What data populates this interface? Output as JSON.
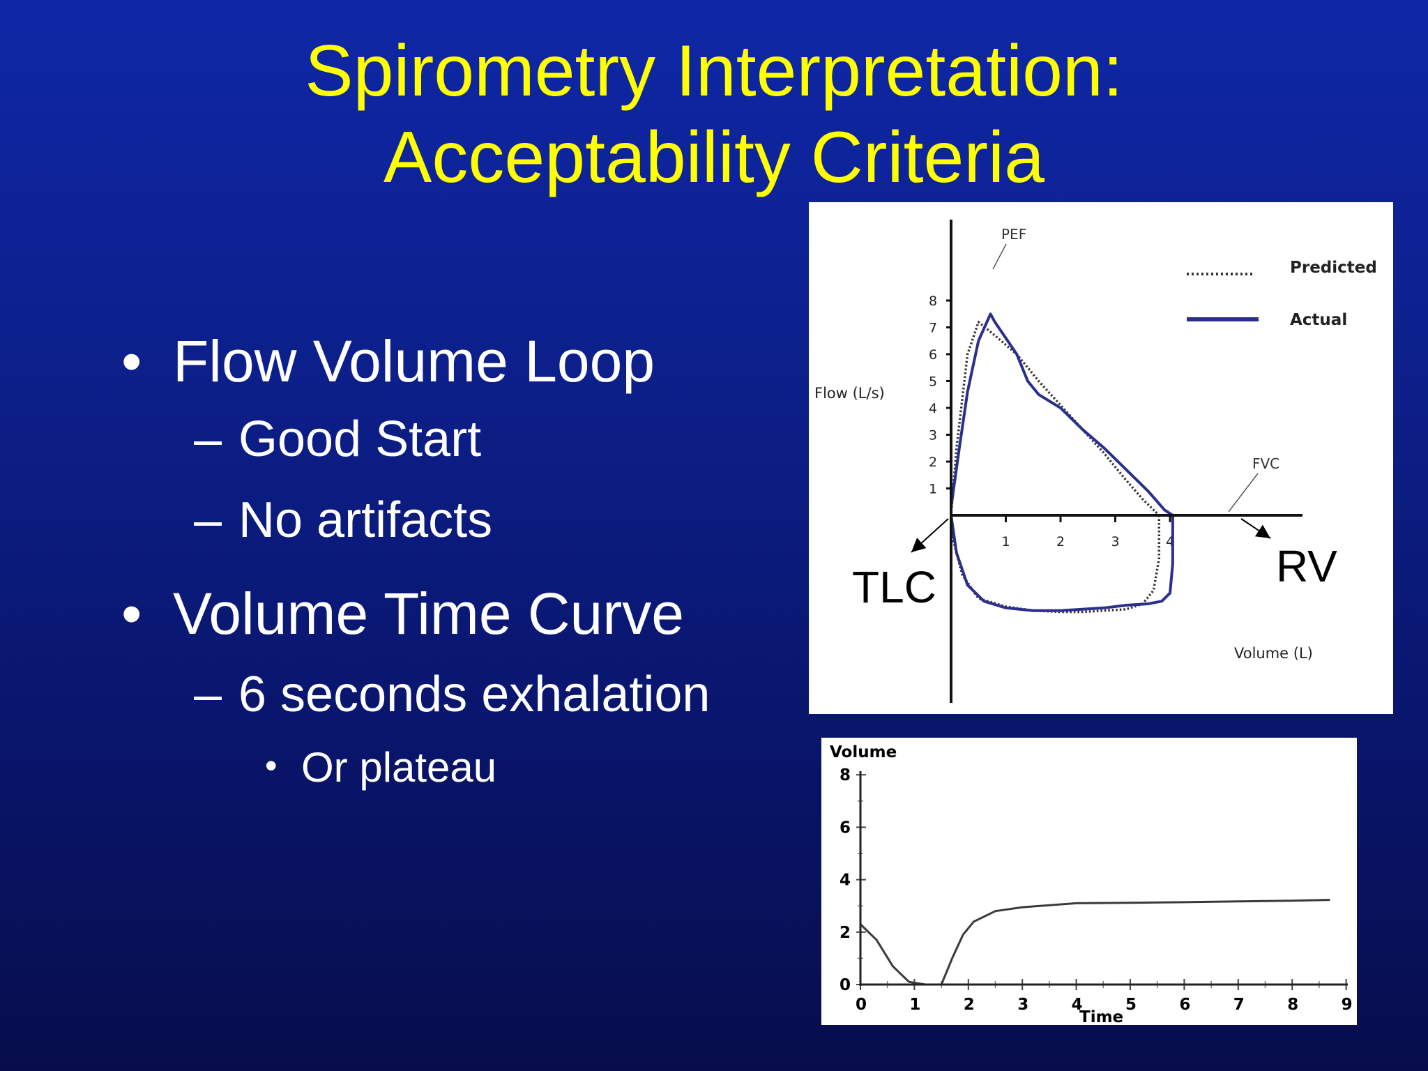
{
  "slide": {
    "title_line1": "Spirometry Interpretation:",
    "title_line2": "Acceptability Criteria",
    "bullets": [
      {
        "text": "Flow Volume Loop",
        "subs": [
          "Good Start",
          "No artifacts"
        ]
      },
      {
        "text": "Volume Time Curve",
        "subs": [
          "6 seconds exhalation"
        ],
        "subsubs": [
          "Or plateau"
        ]
      }
    ],
    "bullet_glyph": "•",
    "dash_glyph": "–"
  },
  "chart_data": [
    {
      "type": "line",
      "title": "",
      "xlabel": "Volume (L)",
      "ylabel": "Flow (L/s)",
      "xlim": [
        -0.05,
        4.9
      ],
      "ylim": [
        -5.3,
        8.5
      ],
      "x_ticks": [
        "1",
        "2",
        "3",
        "4"
      ],
      "y_ticks": [
        "1",
        "2",
        "3",
        "4",
        "5",
        "6",
        "7",
        "8"
      ],
      "legend": {
        "placement": "top-right",
        "entries": [
          "Predicted",
          "Actual"
        ]
      },
      "annotations": [
        "PEF",
        "FVC",
        "TLC",
        "RV"
      ],
      "colors": {
        "actual": "#2a2f8c",
        "predicted": "#333333"
      },
      "series": [
        {
          "name": "Predicted",
          "style": "dotted",
          "x": [
            0.0,
            0.1,
            0.3,
            0.5,
            0.8,
            1.2,
            1.6,
            2.0,
            2.4,
            2.8,
            3.2,
            3.5,
            3.8
          ],
          "y": [
            0.0,
            2.5,
            6.0,
            7.2,
            6.7,
            6.0,
            5.0,
            4.1,
            3.2,
            2.3,
            1.3,
            0.6,
            0.0
          ]
        },
        {
          "name": "Predicted inspiratory",
          "style": "dotted",
          "x": [
            3.8,
            3.8,
            3.7,
            3.5,
            3.2,
            2.8,
            2.4,
            2.0,
            1.5,
            1.0,
            0.5,
            0.2,
            0.05,
            0.0
          ],
          "y": [
            0.0,
            -1.6,
            -2.8,
            -3.3,
            -3.5,
            -3.55,
            -3.6,
            -3.6,
            -3.55,
            -3.4,
            -3.1,
            -2.2,
            -1.0,
            0.0
          ]
        },
        {
          "name": "Actual",
          "x": [
            0.0,
            0.15,
            0.3,
            0.5,
            0.72,
            0.8,
            1.0,
            1.2,
            1.4,
            1.6,
            2.0,
            2.4,
            2.8,
            3.2,
            3.6,
            3.9,
            4.05
          ],
          "y": [
            0.3,
            2.5,
            4.6,
            6.5,
            7.5,
            7.2,
            6.6,
            6.0,
            5.0,
            4.5,
            4.0,
            3.2,
            2.5,
            1.7,
            0.9,
            0.2,
            0.0
          ]
        },
        {
          "name": "Actual inspiratory",
          "x": [
            4.05,
            4.05,
            4.0,
            3.85,
            3.6,
            3.2,
            2.8,
            2.4,
            2.0,
            1.5,
            1.0,
            0.6,
            0.3,
            0.1,
            0.0
          ],
          "y": [
            0.0,
            -1.8,
            -2.9,
            -3.2,
            -3.3,
            -3.35,
            -3.45,
            -3.5,
            -3.55,
            -3.55,
            -3.45,
            -3.2,
            -2.6,
            -1.4,
            0.0
          ]
        }
      ]
    },
    {
      "type": "line",
      "title": "",
      "xlabel": "Time",
      "ylabel": "Volume",
      "xlim": [
        0,
        9
      ],
      "ylim": [
        0,
        8
      ],
      "x_ticks": [
        "0",
        "1",
        "2",
        "3",
        "4",
        "5",
        "6",
        "7",
        "8",
        "9"
      ],
      "y_ticks": [
        "0",
        "2",
        "4",
        "6",
        "8"
      ],
      "colors": {
        "line": "#3a3a3a"
      },
      "series": [
        {
          "x": [
            0.0,
            0.3,
            0.6,
            0.9,
            1.2,
            1.5,
            1.7,
            1.9,
            2.1,
            2.5,
            3.0,
            4.0,
            5.0,
            6.0,
            7.0,
            8.0,
            8.7
          ],
          "y": [
            2.3,
            1.7,
            0.7,
            0.1,
            0.0,
            0.0,
            1.0,
            1.9,
            2.4,
            2.8,
            2.95,
            3.1,
            3.12,
            3.14,
            3.17,
            3.2,
            3.23
          ]
        }
      ]
    }
  ]
}
